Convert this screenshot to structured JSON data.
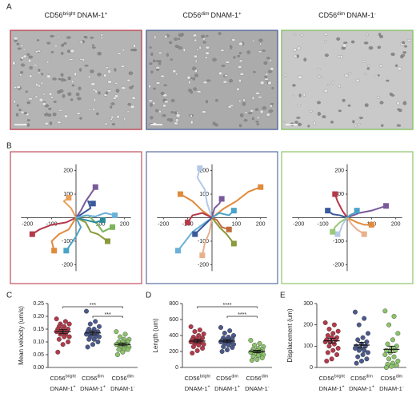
{
  "panel_labels": [
    "A",
    "B",
    "C",
    "D",
    "E"
  ],
  "column_headers": [
    {
      "marker": "CD56",
      "level": "bright",
      "receptor": "DNAM-1",
      "sign": "+"
    },
    {
      "marker": "CD56",
      "level": "dim",
      "receptor": "DNAM-1",
      "sign": "+"
    },
    {
      "marker": "CD56",
      "level": "dim",
      "receptor": "DNAM-1",
      "sign": "-"
    }
  ],
  "chart_data": [
    {
      "type": "line",
      "frame_color": "#c0505e",
      "xlim": [
        -270,
        270
      ],
      "ylim": [
        -280,
        280
      ],
      "xticks": [
        -200,
        -100,
        100,
        200
      ],
      "yticks": [
        -200,
        -100,
        100,
        200
      ],
      "series": [
        {
          "color": "#b5394a",
          "x": [
            0,
            -40,
            -100,
            -150,
            -180
          ],
          "y": [
            0,
            -20,
            -30,
            -50,
            -70
          ]
        },
        {
          "color": "#e08a3c",
          "x": [
            0,
            -30,
            -70,
            -100,
            -90
          ],
          "y": [
            0,
            -50,
            -70,
            -100,
            -140
          ]
        },
        {
          "color": "#4aa3c8",
          "x": [
            0,
            20,
            0,
            -20,
            -40
          ],
          "y": [
            0,
            -40,
            -80,
            -110,
            -140
          ]
        },
        {
          "color": "#8a9a3c",
          "x": [
            0,
            40,
            60,
            90,
            130
          ],
          "y": [
            0,
            -20,
            -60,
            -70,
            -100
          ]
        },
        {
          "color": "#7ab55c",
          "x": [
            0,
            50,
            90,
            110,
            150
          ],
          "y": [
            0,
            10,
            -30,
            -60,
            -40
          ]
        },
        {
          "color": "#7a5a9a",
          "x": [
            0,
            20,
            40,
            60,
            80
          ],
          "y": [
            0,
            30,
            70,
            100,
            130
          ]
        },
        {
          "color": "#3a5a9a",
          "x": [
            0,
            30,
            60,
            50,
            70
          ],
          "y": [
            0,
            20,
            40,
            70,
            60
          ]
        },
        {
          "color": "#e8a05c",
          "x": [
            0,
            -20,
            -50,
            -30
          ],
          "y": [
            0,
            40,
            70,
            85
          ]
        },
        {
          "color": "#2a8a9a",
          "x": [
            0,
            40,
            80,
            110
          ],
          "y": [
            0,
            -10,
            -20,
            -10
          ]
        },
        {
          "color": "#6ab0d8",
          "x": [
            0,
            40,
            80,
            120,
            160
          ],
          "y": [
            0,
            10,
            5,
            20,
            10
          ]
        }
      ]
    },
    {
      "type": "line",
      "frame_color": "#5a6fa0",
      "xlim": [
        -270,
        270
      ],
      "ylim": [
        -280,
        280
      ],
      "xticks": [
        -200,
        -100,
        100,
        200
      ],
      "yticks": [
        -200,
        -100,
        100,
        200
      ],
      "series": [
        {
          "color": "#b5c8e8",
          "x": [
            0,
            -20,
            -30,
            -60,
            -50
          ],
          "y": [
            0,
            60,
            120,
            170,
            210
          ]
        },
        {
          "color": "#e08a3c",
          "x": [
            0,
            -40,
            -80,
            -130
          ],
          "y": [
            0,
            30,
            70,
            100
          ]
        },
        {
          "color": "#e08a3c",
          "x": [
            0,
            50,
            100,
            150,
            200
          ],
          "y": [
            0,
            40,
            70,
            110,
            130
          ]
        },
        {
          "color": "#6ab0d8",
          "x": [
            0,
            -40,
            -80,
            -110,
            -140
          ],
          "y": [
            0,
            -30,
            -60,
            -100,
            -140
          ]
        },
        {
          "color": "#e8b08c",
          "x": [
            0,
            -10,
            -30,
            -40
          ],
          "y": [
            0,
            -60,
            -110,
            -160
          ]
        },
        {
          "color": "#b5394a",
          "x": [
            0,
            -40,
            -80,
            -100
          ],
          "y": [
            0,
            20,
            10,
            -20
          ]
        },
        {
          "color": "#7a5a9a",
          "x": [
            0,
            10,
            30,
            40
          ],
          "y": [
            0,
            40,
            60,
            80
          ]
        },
        {
          "color": "#8a9a3c",
          "x": [
            0,
            30,
            60,
            90
          ],
          "y": [
            0,
            -40,
            -70,
            -110
          ]
        },
        {
          "color": "#3a5a9a",
          "x": [
            0,
            -20,
            -50,
            -70
          ],
          "y": [
            0,
            -20,
            -50,
            -70
          ]
        },
        {
          "color": "#c06a3c",
          "x": [
            0,
            20,
            40,
            70
          ],
          "y": [
            0,
            -10,
            -40,
            -50
          ]
        },
        {
          "color": "#4aa3c8",
          "x": [
            0,
            30,
            70,
            90
          ],
          "y": [
            0,
            20,
            10,
            30
          ]
        }
      ]
    },
    {
      "type": "line",
      "frame_color": "#8cc46a",
      "xlim": [
        -270,
        270
      ],
      "ylim": [
        -280,
        280
      ],
      "xticks": [
        -200,
        -100,
        100,
        200
      ],
      "yticks": [
        -200,
        -100,
        100,
        200
      ],
      "series": [
        {
          "color": "#b5394a",
          "x": [
            0,
            -20,
            -40,
            -50
          ],
          "y": [
            0,
            30,
            70,
            100
          ]
        },
        {
          "color": "#7a5a9a",
          "x": [
            0,
            50,
            100,
            160
          ],
          "y": [
            0,
            20,
            30,
            50
          ]
        },
        {
          "color": "#3a5a9a",
          "x": [
            0,
            -30,
            -60,
            -80
          ],
          "y": [
            0,
            10,
            15,
            30
          ]
        },
        {
          "color": "#e08a3c",
          "x": [
            0,
            40,
            70,
            100
          ],
          "y": [
            0,
            -20,
            -30,
            -30
          ]
        },
        {
          "color": "#e8b08c",
          "x": [
            0,
            20,
            40,
            70
          ],
          "y": [
            0,
            -30,
            -50,
            -70
          ]
        },
        {
          "color": "#b5c8e8",
          "x": [
            0,
            -20,
            -30,
            -40
          ],
          "y": [
            0,
            -30,
            -60,
            -70
          ]
        },
        {
          "color": "#9ac87a",
          "x": [
            0,
            -30,
            -50,
            -60
          ],
          "y": [
            0,
            -20,
            -40,
            -60
          ]
        },
        {
          "color": "#4aa3c8",
          "x": [
            0,
            10,
            30,
            40
          ],
          "y": [
            0,
            10,
            20,
            30
          ]
        }
      ]
    },
    {
      "type": "strip",
      "ylabel": "Mean velocity (um/s)",
      "ylim": [
        0,
        0.25
      ],
      "yticks": [
        {
          "value": 0,
          "label": "0.00"
        },
        {
          "value": 0.05,
          "label": "0.05"
        },
        {
          "value": 0.1,
          "label": "0.10"
        },
        {
          "value": 0.15,
          "label": "0.15"
        },
        {
          "value": 0.2,
          "label": "0.20"
        },
        {
          "value": 0.25,
          "label": "0.25"
        }
      ],
      "categories": [
        {
          "marker": "CD56",
          "level": "bright",
          "receptor": "DNAM-1",
          "sign": "+"
        },
        {
          "marker": "CD56",
          "level": "dim",
          "receptor": "DNAM-1",
          "sign": "+"
        },
        {
          "marker": "CD56",
          "level": "dim",
          "receptor": "DNAM-1",
          "sign": "-"
        }
      ],
      "colors": [
        "#b5394a",
        "#4a5a8c",
        "#8cc46a"
      ],
      "values": [
        [
          0.19,
          0.18,
          0.17,
          0.17,
          0.16,
          0.16,
          0.15,
          0.15,
          0.15,
          0.14,
          0.14,
          0.14,
          0.13,
          0.13,
          0.12,
          0.12,
          0.11,
          0.1,
          0.09,
          0.06
        ],
        [
          0.22,
          0.18,
          0.17,
          0.16,
          0.15,
          0.15,
          0.14,
          0.14,
          0.14,
          0.13,
          0.13,
          0.13,
          0.12,
          0.12,
          0.12,
          0.11,
          0.11,
          0.1,
          0.09,
          0.08
        ],
        [
          0.14,
          0.13,
          0.12,
          0.11,
          0.11,
          0.1,
          0.1,
          0.1,
          0.09,
          0.09,
          0.09,
          0.09,
          0.08,
          0.08,
          0.08,
          0.07,
          0.07,
          0.07,
          0.06,
          0.05
        ]
      ],
      "means": [
        0.14,
        0.135,
        0.09
      ],
      "errors": [
        0.008,
        0.007,
        0.005
      ],
      "brackets": [
        {
          "label": "***",
          "between": [
            0,
            2
          ]
        },
        {
          "label": "***",
          "between": [
            1,
            2
          ]
        }
      ]
    },
    {
      "type": "strip",
      "ylabel": "Length (um)",
      "ylim": [
        0,
        800
      ],
      "yticks": [
        0,
        200,
        400,
        600,
        800
      ],
      "categories": [
        {
          "marker": "CD56",
          "level": "bright",
          "receptor": "DNAM-1",
          "sign": "+"
        },
        {
          "marker": "CD56",
          "level": "dim",
          "receptor": "DNAM-1",
          "sign": "+"
        },
        {
          "marker": "CD56",
          "level": "dim",
          "receptor": "DNAM-1",
          "sign": "-"
        }
      ],
      "colors": [
        "#b5394a",
        "#4a5a8c",
        "#8cc46a"
      ],
      "values": [
        [
          510,
          470,
          450,
          420,
          400,
          380,
          370,
          360,
          350,
          340,
          330,
          320,
          310,
          300,
          290,
          280,
          260,
          240,
          210,
          180
        ],
        [
          500,
          460,
          430,
          400,
          380,
          370,
          360,
          350,
          340,
          330,
          330,
          320,
          310,
          300,
          290,
          280,
          260,
          250,
          220,
          200
        ],
        [
          340,
          300,
          280,
          260,
          240,
          230,
          220,
          210,
          200,
          200,
          190,
          190,
          180,
          170,
          160,
          150,
          140,
          120,
          100,
          90
        ]
      ],
      "means": [
        330,
        330,
        200
      ],
      "errors": [
        20,
        18,
        14
      ],
      "brackets": [
        {
          "label": "****",
          "between": [
            0,
            2
          ]
        },
        {
          "label": "****",
          "between": [
            1,
            2
          ]
        }
      ]
    },
    {
      "type": "strip",
      "ylabel": "Displacement (um)",
      "ylim": [
        0,
        300
      ],
      "yticks": [
        0,
        100,
        200,
        300
      ],
      "categories": [
        {
          "marker": "CD56",
          "level": "bright",
          "receptor": "DNAM-1",
          "sign": "+"
        },
        {
          "marker": "CD56",
          "level": "dim",
          "receptor": "DNAM-1",
          "sign": "+"
        },
        {
          "marker": "CD56",
          "level": "dim",
          "receptor": "DNAM-1",
          "sign": "-"
        }
      ],
      "colors": [
        "#b5394a",
        "#4a5a8c",
        "#8cc46a"
      ],
      "values": [
        [
          210,
          200,
          180,
          170,
          160,
          150,
          140,
          140,
          130,
          130,
          120,
          120,
          110,
          100,
          90,
          80,
          70,
          60,
          40,
          30
        ],
        [
          260,
          230,
          200,
          160,
          140,
          130,
          120,
          110,
          100,
          100,
          90,
          90,
          80,
          80,
          70,
          60,
          50,
          40,
          30,
          20
        ],
        [
          265,
          240,
          200,
          160,
          130,
          110,
          100,
          90,
          80,
          80,
          70,
          60,
          50,
          40,
          30,
          20,
          15,
          10,
          5,
          0
        ]
      ],
      "means": [
        125,
        105,
        85
      ],
      "errors": [
        11,
        13,
        15
      ],
      "brackets": []
    }
  ]
}
